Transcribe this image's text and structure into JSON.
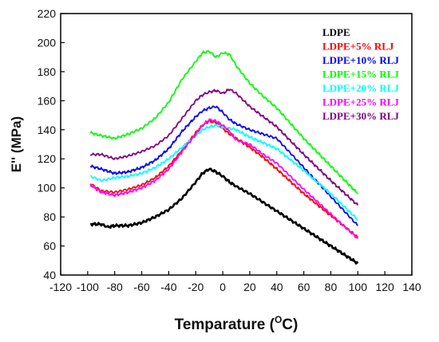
{
  "chart_data": {
    "type": "line",
    "title": "",
    "xlabel": "Temparature (",
    "xlabel_sup": "O",
    "xlabel_unit": "C)",
    "ylabel": "E'' (MPa)",
    "xlim": [
      -120,
      140
    ],
    "ylim": [
      40,
      220
    ],
    "xticks": [
      -120,
      -100,
      -80,
      -60,
      -40,
      -20,
      0,
      20,
      40,
      60,
      80,
      100,
      120,
      140
    ],
    "yticks": [
      40,
      60,
      80,
      100,
      120,
      140,
      160,
      180,
      200,
      220
    ],
    "grid": false,
    "legend_position": "top-right",
    "series": [
      {
        "name": "LDPE",
        "color": "#000000",
        "x": [
          -98,
          -90,
          -85,
          -80,
          -70,
          -60,
          -50,
          -40,
          -30,
          -20,
          -15,
          -10,
          -5,
          0,
          5,
          10,
          20,
          30,
          40,
          60,
          80,
          100
        ],
        "y": [
          75,
          75,
          73,
          74,
          74,
          76,
          80,
          85,
          93,
          104,
          110,
          113,
          111,
          108,
          104,
          101,
          96,
          90,
          84,
          72,
          60,
          48
        ]
      },
      {
        "name": "LDPE+5% RLJ",
        "color": "#ff0000",
        "x": [
          -98,
          -90,
          -80,
          -70,
          -60,
          -50,
          -40,
          -30,
          -20,
          -15,
          -10,
          -5,
          0,
          5,
          10,
          20,
          30,
          40,
          60,
          80,
          100
        ],
        "y": [
          103,
          98,
          97,
          99,
          102,
          107,
          115,
          126,
          138,
          143,
          146,
          145,
          141,
          137,
          134,
          128,
          121,
          113,
          96,
          81,
          66
        ]
      },
      {
        "name": "LDPE+10% RLJ",
        "color": "#0000ff",
        "x": [
          -98,
          -90,
          -80,
          -70,
          -60,
          -50,
          -40,
          -30,
          -20,
          -15,
          -10,
          -5,
          0,
          5,
          10,
          20,
          30,
          40,
          60,
          80,
          100
        ],
        "y": [
          115,
          113,
          110,
          111,
          114,
          119,
          127,
          139,
          149,
          153,
          155,
          156,
          152,
          147,
          144,
          140,
          137,
          134,
          114,
          94,
          74
        ]
      },
      {
        "name": "LDPE+15% RLJ",
        "color": "#00ff00",
        "x": [
          -98,
          -90,
          -80,
          -70,
          -60,
          -50,
          -40,
          -30,
          -20,
          -15,
          -10,
          -5,
          0,
          5,
          10,
          20,
          30,
          40,
          60,
          80,
          100
        ],
        "y": [
          138,
          136,
          134,
          137,
          141,
          148,
          159,
          175,
          187,
          193,
          194,
          190,
          193,
          192,
          184,
          172,
          163,
          155,
          134,
          115,
          96
        ]
      },
      {
        "name": "LDPE+20% RLJ",
        "color": "#00ffff",
        "x": [
          -98,
          -90,
          -80,
          -70,
          -60,
          -50,
          -40,
          -30,
          -20,
          -15,
          -10,
          -5,
          0,
          5,
          10,
          20,
          30,
          40,
          60,
          80,
          100
        ],
        "y": [
          108,
          105,
          107,
          108,
          110,
          114,
          120,
          128,
          136,
          140,
          142,
          143,
          142,
          141,
          140,
          135,
          131,
          127,
          112,
          96,
          78
        ]
      },
      {
        "name": "LDPE+25% RLJ",
        "color": "#ff00ff",
        "x": [
          -98,
          -90,
          -80,
          -70,
          -60,
          -50,
          -40,
          -30,
          -20,
          -15,
          -10,
          -5,
          0,
          5,
          10,
          20,
          30,
          40,
          60,
          80,
          100
        ],
        "y": [
          102,
          97,
          95,
          97,
          100,
          105,
          113,
          125,
          137,
          143,
          147,
          146,
          143,
          139,
          133,
          130,
          123,
          117,
          99,
          82,
          65
        ]
      },
      {
        "name": "LDPE+30% RLJ",
        "color": "#800080",
        "x": [
          -98,
          -90,
          -80,
          -70,
          -60,
          -50,
          -40,
          -30,
          -20,
          -15,
          -10,
          -5,
          0,
          5,
          10,
          20,
          30,
          40,
          60,
          80,
          100
        ],
        "y": [
          123,
          123,
          120,
          122,
          125,
          129,
          136,
          148,
          160,
          164,
          166,
          167,
          165,
          168,
          165,
          156,
          149,
          142,
          123,
          105,
          88
        ]
      }
    ]
  }
}
